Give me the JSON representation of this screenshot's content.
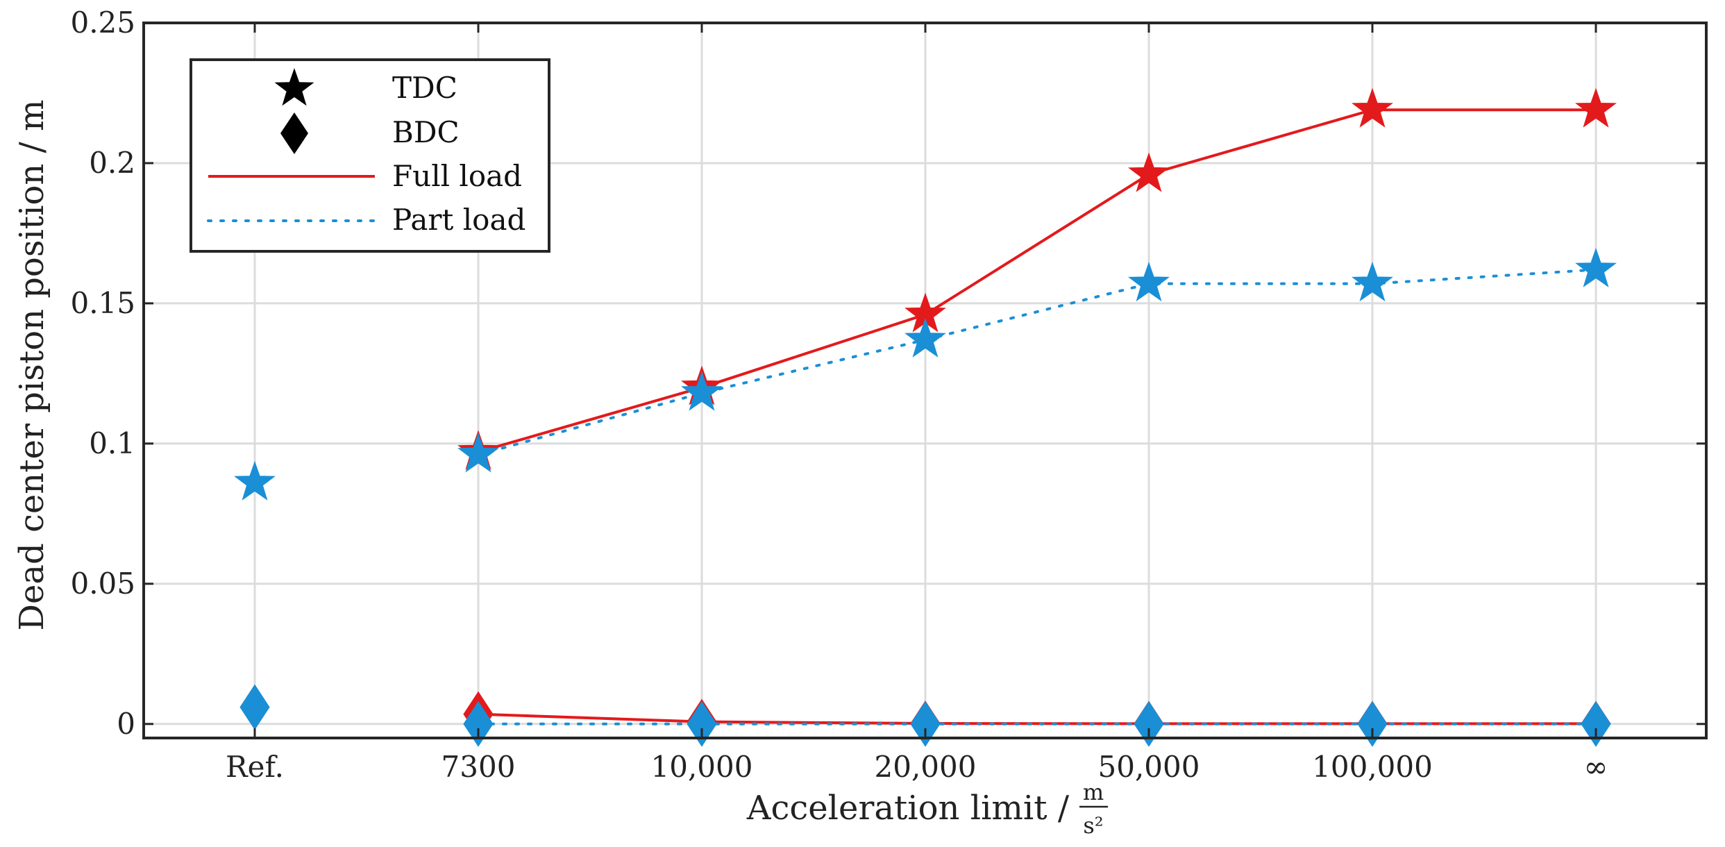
{
  "chart_data": {
    "type": "line",
    "categories": [
      "Ref.",
      "7300",
      "10,000",
      "20,000",
      "50,000",
      "100,000",
      "∞"
    ],
    "xlabel": "Acceleration limit /",
    "xlabel_unit_num": "m",
    "xlabel_unit_den": "s²",
    "ylabel": "Dead center piston position / m",
    "ylim": [
      -0.005,
      0.25
    ],
    "yticks": [
      0,
      0.05,
      0.1,
      0.15,
      0.2,
      0.25
    ],
    "ytick_labels": [
      "0",
      "0.05",
      "0.1",
      "0.15",
      "0.2",
      "0.25"
    ],
    "grid": true,
    "legend_position": "top-left",
    "legend": [
      {
        "label": "TDC",
        "kind": "star-marker"
      },
      {
        "label": "BDC",
        "kind": "diamond-marker"
      },
      {
        "label": "Full load",
        "kind": "solid-line"
      },
      {
        "label": "Part load",
        "kind": "dotted-line"
      }
    ],
    "series": [
      {
        "name": "Full load TDC",
        "load": "full",
        "point": "TDC",
        "color": "#e31a1c",
        "line": "solid",
        "marker": "star",
        "values": [
          null,
          0.097,
          0.12,
          0.146,
          0.196,
          0.219,
          0.219
        ]
      },
      {
        "name": "Full load BDC",
        "load": "full",
        "point": "BDC",
        "color": "#e31a1c",
        "line": "solid",
        "marker": "diamond",
        "values": [
          null,
          0.0035,
          0.0008,
          0.0002,
          0.0001,
          0.0001,
          0.0001
        ]
      },
      {
        "name": "Part load TDC",
        "load": "part",
        "point": "TDC",
        "color": "#1a8fd6",
        "line": "dotted",
        "marker": "star",
        "values": [
          0.086,
          0.096,
          0.118,
          0.137,
          0.157,
          0.157,
          0.162
        ]
      },
      {
        "name": "Part load BDC",
        "load": "part",
        "point": "BDC",
        "color": "#1a8fd6",
        "line": "dotted",
        "marker": "diamond",
        "values": [
          0.006,
          0.0,
          0.0,
          0.0,
          0.0,
          0.0,
          0.0
        ]
      }
    ]
  }
}
